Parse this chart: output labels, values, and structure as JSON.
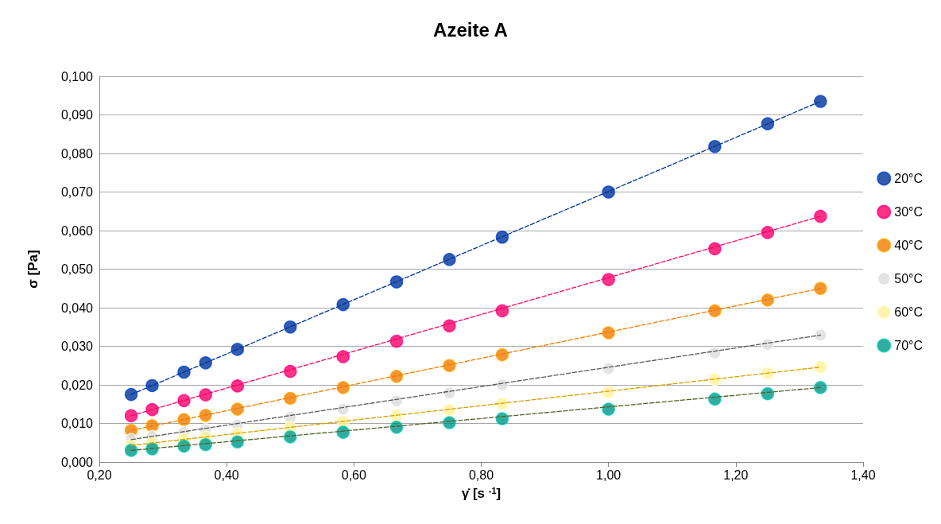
{
  "chart_data": {
    "type": "scatter",
    "title": "Azeite A",
    "xlabel": "γ̇ [s $^{-1}$]",
    "ylabel": "σ [Pa]",
    "marker": "circle",
    "grid": "y",
    "legend": "right",
    "xlim": [
      0.2,
      1.4
    ],
    "xticks": [
      {
        "value": 0.2,
        "label": "0,20"
      },
      {
        "value": 0.4,
        "label": "0,40"
      },
      {
        "value": 0.6,
        "label": "0,60"
      },
      {
        "value": 0.8,
        "label": "0,80"
      },
      {
        "value": 1.0,
        "label": "1,00"
      },
      {
        "value": 1.2,
        "label": "1,20"
      },
      {
        "value": 1.4,
        "label": "1,40"
      }
    ],
    "ylim": [
      0,
      0.1
    ],
    "yticks": [
      {
        "value": 0,
        "label": "0,000"
      },
      {
        "value": 0.01,
        "label": "0,010"
      },
      {
        "value": 0.02,
        "label": "0,020"
      },
      {
        "value": 0.03,
        "label": "0,030"
      },
      {
        "value": 0.04,
        "label": "0,040"
      },
      {
        "value": 0.05,
        "label": "0,050"
      },
      {
        "value": 0.06,
        "label": "0,060"
      },
      {
        "value": 0.07,
        "label": "0,070"
      },
      {
        "value": 0.08,
        "label": "0,080"
      },
      {
        "value": 0.09,
        "label": "0,090"
      },
      {
        "value": 0.1,
        "label": "0,100"
      }
    ],
    "x": [
      0.25,
      0.283,
      0.333,
      0.367,
      0.417,
      0.5,
      0.583,
      0.667,
      0.75,
      0.833,
      1.0,
      1.167,
      1.25,
      1.333
    ],
    "series": [
      {
        "name": "20°C",
        "color": "#003399",
        "values": [
          0.0175,
          0.0198,
          0.0233,
          0.0257,
          0.0292,
          0.035,
          0.0408,
          0.0467,
          0.0525,
          0.0583,
          0.07,
          0.0818,
          0.0877,
          0.0935
        ]
      },
      {
        "name": "30°C",
        "color": "#ff0066",
        "values": [
          0.012,
          0.0136,
          0.0159,
          0.0174,
          0.0197,
          0.0235,
          0.0273,
          0.0313,
          0.0353,
          0.0392,
          0.0473,
          0.0553,
          0.0595,
          0.0637
        ]
      },
      {
        "name": "40°C",
        "color": "#f07c00",
        "values": [
          0.0082,
          0.0094,
          0.011,
          0.0121,
          0.0137,
          0.0165,
          0.0193,
          0.0222,
          0.025,
          0.0278,
          0.0335,
          0.0392,
          0.042,
          0.045
        ]
      },
      {
        "name": "50°C",
        "color": "#dcdcdc",
        "values": [
          0.0058,
          0.0066,
          0.0077,
          0.0084,
          0.0096,
          0.0116,
          0.0137,
          0.0158,
          0.0179,
          0.02,
          0.0242,
          0.0283,
          0.0305,
          0.0329
        ]
      },
      {
        "name": "60°C",
        "color": "#fff09a",
        "values": [
          0.0043,
          0.005,
          0.0059,
          0.0064,
          0.0073,
          0.0089,
          0.0104,
          0.012,
          0.0135,
          0.0151,
          0.0181,
          0.0214,
          0.023,
          0.0246
        ]
      },
      {
        "name": "70°C",
        "color": "#009688",
        "values": [
          0.003,
          0.0034,
          0.0041,
          0.0045,
          0.0052,
          0.0065,
          0.0077,
          0.009,
          0.0102,
          0.0112,
          0.0137,
          0.0163,
          0.0177,
          0.0193
        ]
      },
      {
        "type": "line",
        "line_style": "dashed",
        "marker": "none",
        "color": "#003399",
        "values": [
          0.0175,
          null,
          null,
          null,
          null,
          null,
          null,
          null,
          null,
          null,
          null,
          null,
          null,
          0.0935
        ]
      },
      {
        "type": "line",
        "line_style": "dashed",
        "marker": "none",
        "color": "#ff0066",
        "values": [
          0.012,
          null,
          null,
          null,
          null,
          null,
          null,
          null,
          null,
          null,
          null,
          null,
          null,
          0.0637
        ]
      },
      {
        "type": "line",
        "line_style": "dashed",
        "marker": "none",
        "color": "#f07c00",
        "values": [
          0.0082,
          null,
          null,
          null,
          null,
          null,
          null,
          null,
          null,
          null,
          null,
          null,
          null,
          0.045
        ]
      },
      {
        "type": "line",
        "line_style": "dashed",
        "marker": "none",
        "color": "#595959",
        "values": [
          0.0058,
          null,
          null,
          null,
          null,
          null,
          null,
          null,
          null,
          null,
          null,
          null,
          null,
          0.0329
        ]
      },
      {
        "type": "line",
        "line_style": "dashed",
        "marker": "none",
        "color": "#d4a000",
        "values": [
          0.0043,
          null,
          null,
          null,
          null,
          null,
          null,
          null,
          null,
          null,
          null,
          null,
          null,
          0.0246
        ]
      },
      {
        "type": "line",
        "line_style": "dashed",
        "marker": "none",
        "color": "#4f6228",
        "values": [
          0.003,
          null,
          null,
          null,
          null,
          null,
          null,
          null,
          null,
          null,
          null,
          null,
          null,
          0.0193
        ]
      }
    ]
  }
}
